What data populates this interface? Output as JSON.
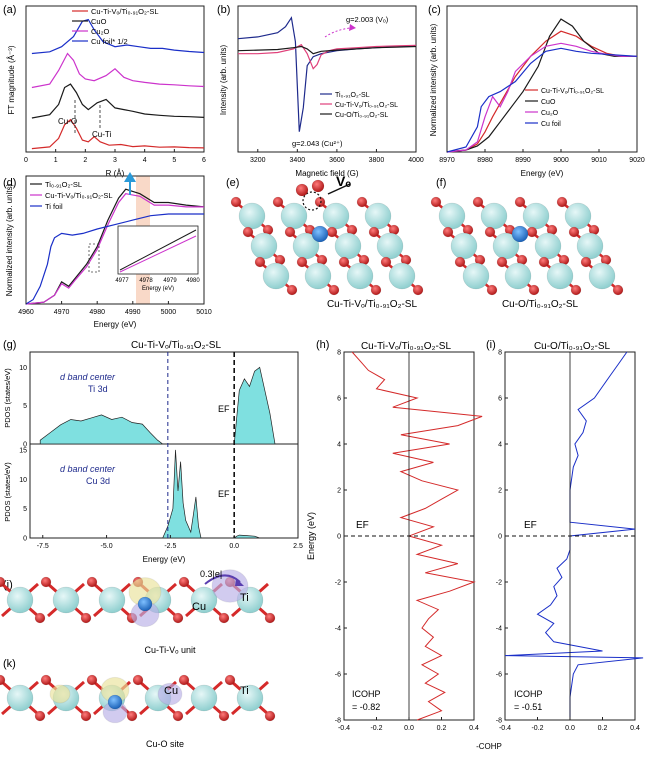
{
  "colors": {
    "red": "#d42a2a",
    "black": "#1a1a1a",
    "pink": "#e0407a",
    "magenta": "#cc33cc",
    "navy": "#1e2a8c",
    "blue": "#1a2fc8",
    "purple": "#7a2fb0",
    "cyan": "#7fe0e0",
    "peach": "#f7c9b0",
    "ti_atom": "#a9dede",
    "o_atom": "#d52a2a",
    "cu_atom": "#3a8fd8",
    "charge_yellow": "#eae29a",
    "charge_purple": "#b9b0e8"
  },
  "panels": {
    "a": {
      "label": "(a)",
      "ylabel": "FT magnitude (Å⁻³)",
      "xlabel": "R (Å)",
      "xticks": [
        "0",
        "1",
        "2",
        "3",
        "4",
        "5",
        "6"
      ],
      "legend": [
        "Cu-Ti-Vₒ/Ti₀.₉₁O₂-SL",
        "CuO",
        "Cu₂O",
        "Cu foil* 1/2"
      ],
      "annotations": [
        "Cu-O",
        "Cu-Ti"
      ]
    },
    "b": {
      "label": "(b)",
      "ylabel": "Intensity (arb. units)",
      "xlabel": "Magnetic field (G)",
      "xticks": [
        "3200",
        "3400",
        "3600",
        "3800",
        "4000"
      ],
      "legend": [
        "Ti₀.₉₁O₂-SL",
        "Cu-Ti-Vₒ/Ti₀.₉₁O₂-SL",
        "Cu-O/Ti₀.₉₁O₂-SL"
      ],
      "annotations": [
        "g=2.003 (Vₒ)",
        "g=2.043 (Cu²⁺)"
      ]
    },
    "c": {
      "label": "(c)",
      "ylabel": "Normalized intensity (arb. units)",
      "xlabel": "Energy (eV)",
      "xticks": [
        "8970",
        "8980",
        "8990",
        "9000",
        "9010",
        "9020"
      ],
      "legend": [
        "Cu-Ti-Vₒ/Ti₀.₉₁O₂-SL",
        "CuO",
        "Cu₂O",
        "Cu foil"
      ]
    },
    "d": {
      "label": "(d)",
      "ylabel": "Normalized intensity (arb. units)",
      "xlabel": "Energy (eV)",
      "xticks": [
        "4960",
        "4970",
        "4980",
        "4990",
        "5000",
        "5010"
      ],
      "inset_xticks": [
        "4977",
        "4978",
        "4979",
        "4980"
      ],
      "inset_xlabel": "Energy (eV)",
      "legend": [
        "Ti₀.₉₁O₂-SL",
        "Cu-Ti-Vₒ/Ti₀.₉₁O₂-SL",
        "Ti foil"
      ]
    },
    "e": {
      "label": "(e)",
      "caption": "Cu-Ti-Vₒ/Ti₀.₉₁O₂-SL",
      "vo_label": "Vₒ"
    },
    "f": {
      "label": "(f)",
      "caption": "Cu-O/Ti₀.₉₁O₂-SL"
    },
    "g": {
      "label": "(g)",
      "title": "Cu-Ti-Vₒ/Ti₀.₉₁O₂-SL",
      "ylabel_top": "PDOS (states/eV)",
      "ylabel_bottom": "PDOS (states/eV)",
      "xlabel": "Energy (eV)",
      "xticks": [
        "-7.5",
        "-5.0",
        "-2.5",
        "0.0",
        "2.5"
      ],
      "yticks_top": [
        "0",
        "5",
        "10"
      ],
      "yticks_bottom": [
        "0",
        "5",
        "10",
        "15"
      ],
      "top_text": [
        "d band center",
        "Ti 3d"
      ],
      "bottom_text": [
        "d band center",
        "Cu 3d"
      ],
      "ef": "EF"
    },
    "h": {
      "label": "(h)",
      "title": "Cu-Ti-Vₒ/Ti₀.₉₁O₂-SL",
      "ylabel": "Energy (eV)",
      "yticks": [
        "8",
        "6",
        "4",
        "2",
        "0",
        "-2",
        "-4",
        "-6",
        "-8"
      ],
      "xticks": [
        "-0.4",
        "-0.2",
        "0.0",
        "0.2",
        "0.4"
      ],
      "icohp": [
        "ICOHP",
        "= -0.82"
      ],
      "ef": "EF"
    },
    "i": {
      "label": "(i)",
      "title": "Cu-O/Ti₀.₉₁O₂-SL",
      "yticks": [
        "8",
        "6",
        "4",
        "2",
        "0",
        "-2",
        "-4",
        "-6",
        "-8"
      ],
      "xticks": [
        "-0.4",
        "-0.2",
        "0.0",
        "0.2",
        "0.4"
      ],
      "icohp": [
        "ICOHP",
        "= -0.51"
      ],
      "ef": "EF"
    },
    "hi_xlabel": "-COHP",
    "j": {
      "label": "(j)",
      "charge": "0.3|e|",
      "cu": "Cu",
      "ti": "Ti",
      "caption": "Cu-Ti-Vₒ unit"
    },
    "k": {
      "label": "(k)",
      "cu": "Cu",
      "ti": "Ti",
      "caption": "Cu-O site"
    }
  },
  "chart_data": [
    {
      "panel": "a",
      "type": "line",
      "xlim": [
        0,
        6
      ],
      "series": [
        {
          "name": "Cu-Ti-Vₒ/Ti₀.₉₁O₂-SL",
          "color": "#d42a2a",
          "x": [
            0.2,
            0.8,
            1.1,
            1.3,
            1.5,
            1.7,
            1.9,
            2.1,
            2.3,
            2.5,
            2.8,
            3.2,
            3.6,
            4.0,
            4.5,
            5.0,
            5.5,
            6.0
          ],
          "y": [
            0.0,
            0.05,
            0.3,
            0.7,
            0.85,
            0.6,
            0.25,
            0.2,
            0.35,
            0.2,
            0.1,
            0.12,
            0.06,
            0.08,
            0.04,
            0.05,
            0.03,
            0.02
          ]
        },
        {
          "name": "CuO",
          "color": "#1a1a1a",
          "x": [
            0.2,
            0.8,
            1.1,
            1.3,
            1.5,
            1.7,
            1.9,
            2.1,
            2.4,
            2.7,
            3.0,
            3.3,
            3.6,
            4.0,
            4.5,
            5.0,
            5.5,
            6.0
          ],
          "y": [
            0.0,
            0.1,
            0.4,
            0.9,
            1.0,
            0.75,
            0.4,
            0.25,
            0.45,
            0.55,
            0.3,
            0.25,
            0.2,
            0.12,
            0.08,
            0.05,
            0.04,
            0.02
          ]
        },
        {
          "name": "Cu₂O",
          "color": "#cc33cc",
          "x": [
            0.2,
            0.8,
            1.1,
            1.4,
            1.6,
            1.8,
            2.0,
            2.3,
            2.7,
            3.0,
            3.3,
            3.6,
            4.0,
            4.5,
            5.0,
            5.5,
            6.0
          ],
          "y": [
            0.0,
            0.1,
            0.5,
            1.0,
            0.8,
            0.4,
            0.25,
            0.2,
            0.35,
            0.55,
            0.3,
            0.2,
            0.15,
            0.1,
            0.08,
            0.05,
            0.03
          ]
        },
        {
          "name": "Cu foil* 1/2",
          "color": "#1a2fc8",
          "x": [
            0.2,
            0.8,
            1.2,
            1.6,
            1.9,
            2.1,
            2.3,
            2.6,
            3.0,
            3.4,
            3.8,
            4.2,
            4.6,
            5.0,
            5.5,
            6.0
          ],
          "y": [
            0.0,
            0.05,
            0.2,
            0.5,
            0.95,
            1.0,
            0.7,
            0.35,
            0.2,
            0.25,
            0.2,
            0.15,
            0.15,
            0.1,
            0.06,
            0.03
          ]
        }
      ]
    },
    {
      "panel": "b",
      "type": "line",
      "xlim": [
        3100,
        4000
      ],
      "series": [
        {
          "name": "Ti₀.₉₁O₂-SL",
          "color": "#1e2a8c",
          "x": [
            3100,
            3200,
            3300,
            3340,
            3370,
            3390,
            3410,
            3430,
            3450,
            3480,
            3520,
            3600,
            3700,
            3800,
            3900,
            4000
          ],
          "y": [
            0.55,
            0.58,
            0.65,
            0.75,
            0.9,
            0.5,
            -1.0,
            -0.6,
            0.1,
            0.25,
            0.3,
            0.35,
            0.38,
            0.4,
            0.42,
            0.43
          ]
        },
        {
          "name": "Cu-Ti-Vₒ/Ti₀.₉₁O₂-SL",
          "color": "#e0407a",
          "x": [
            3100,
            3200,
            3300,
            3380,
            3420,
            3450,
            3480,
            3500,
            3520,
            3560,
            3600,
            3700,
            3800,
            3900,
            4000
          ],
          "y": [
            0.3,
            0.3,
            0.32,
            0.38,
            0.45,
            0.3,
            0.05,
            0.12,
            0.28,
            0.35,
            0.38,
            0.4,
            0.42,
            0.43,
            0.44
          ]
        },
        {
          "name": "Cu-O/Ti₀.₉₁O₂-SL",
          "color": "#1a1a1a",
          "x": [
            3100,
            3200,
            3300,
            3380,
            3420,
            3450,
            3480,
            3520,
            3600,
            3700,
            3800,
            3900,
            4000
          ],
          "y": [
            0.35,
            0.36,
            0.37,
            0.4,
            0.42,
            0.38,
            0.3,
            0.34,
            0.36,
            0.38,
            0.4,
            0.41,
            0.42
          ]
        }
      ]
    },
    {
      "panel": "c",
      "type": "line",
      "xlim": [
        8970,
        9020
      ],
      "series": [
        {
          "name": "Cu-Ti-Vₒ/Ti₀.₉₁O₂-SL",
          "color": "#d42a2a",
          "x": [
            8970,
            8975,
            8978,
            8980,
            8982,
            8985,
            8988,
            8992,
            8996,
            9000,
            9004,
            9008,
            9012,
            9016,
            9020
          ],
          "y": [
            0.0,
            0.02,
            0.08,
            0.2,
            0.35,
            0.55,
            0.75,
            0.95,
            1.1,
            1.2,
            1.15,
            1.05,
            0.98,
            0.95,
            0.95
          ]
        },
        {
          "name": "CuO",
          "color": "#1a1a1a",
          "x": [
            8970,
            8975,
            8978,
            8981,
            8984,
            8987,
            8990,
            8994,
            8997,
            9000,
            9003,
            9006,
            9010,
            9014,
            9020
          ],
          "y": [
            0.0,
            0.02,
            0.06,
            0.15,
            0.3,
            0.45,
            0.6,
            0.85,
            1.15,
            1.32,
            1.25,
            1.1,
            0.98,
            0.95,
            0.95
          ]
        },
        {
          "name": "Cu₂O",
          "color": "#cc33cc",
          "x": [
            8970,
            8975,
            8978,
            8980,
            8982,
            8984,
            8986,
            8988,
            8992,
            8996,
            9000,
            9004,
            9008,
            9012,
            9016,
            9020
          ],
          "y": [
            0.0,
            0.02,
            0.1,
            0.35,
            0.55,
            0.45,
            0.6,
            0.8,
            0.95,
            1.05,
            1.08,
            1.05,
            1.0,
            0.97,
            0.95,
            0.95
          ]
        },
        {
          "name": "Cu foil",
          "color": "#1a2fc8",
          "x": [
            8970,
            8975,
            8978,
            8979,
            8981,
            8984,
            8988,
            8992,
            8996,
            9000,
            9004,
            9008,
            9012,
            9016,
            9020
          ],
          "y": [
            0.0,
            0.05,
            0.25,
            0.45,
            0.55,
            0.6,
            0.7,
            0.88,
            1.0,
            1.03,
            1.0,
            0.98,
            0.97,
            0.96,
            0.95
          ]
        }
      ]
    },
    {
      "panel": "d",
      "type": "line",
      "xlim": [
        4960,
        5010
      ],
      "series": [
        {
          "name": "Ti₀.₉₁O₂-SL",
          "color": "#1a1a1a",
          "x": [
            4960,
            4965,
            4968,
            4970,
            4972,
            4974,
            4977,
            4980,
            4983,
            4986,
            4988,
            4992,
            4996,
            5000,
            5005,
            5010
          ],
          "y": [
            0.0,
            0.02,
            0.1,
            0.25,
            0.2,
            0.3,
            0.45,
            0.65,
            0.95,
            1.2,
            1.3,
            1.25,
            1.15,
            1.15,
            1.12,
            1.1
          ]
        },
        {
          "name": "Cu-Ti-Vₒ/Ti₀.₉₁O₂-SL",
          "color": "#cc33cc",
          "x": [
            4960,
            4965,
            4968,
            4970,
            4972,
            4974,
            4977,
            4980,
            4983,
            4986,
            4988,
            4992,
            4996,
            5000,
            5005,
            5010
          ],
          "y": [
            0.0,
            0.02,
            0.1,
            0.23,
            0.18,
            0.28,
            0.42,
            0.62,
            0.9,
            1.15,
            1.25,
            1.22,
            1.12,
            1.12,
            1.1,
            1.1
          ]
        },
        {
          "name": "Ti foil",
          "color": "#1a2fc8",
          "x": [
            4960,
            4962,
            4964,
            4966,
            4967,
            4968,
            4970,
            4973,
            4976,
            4980,
            4985,
            4990,
            4995,
            5000,
            5005,
            5010
          ],
          "y": [
            0.0,
            0.05,
            0.2,
            0.45,
            0.65,
            0.75,
            0.8,
            0.78,
            0.8,
            0.85,
            0.9,
            0.95,
            1.0,
            1.02,
            1.02,
            1.02
          ]
        }
      ]
    },
    {
      "panel": "g-top",
      "type": "area",
      "xlim": [
        -8,
        2.5
      ],
      "ylim": [
        0,
        12
      ],
      "x": [
        -7.6,
        -7.2,
        -6.8,
        -6.4,
        -6.0,
        -5.6,
        -5.2,
        -4.8,
        -4.4,
        -4.0,
        -3.6,
        -3.3,
        -3.0,
        -2.8,
        0.0,
        0.2,
        0.4,
        0.6,
        0.8,
        1.0,
        1.2,
        1.4,
        1.6
      ],
      "y": [
        0.5,
        1.5,
        2.5,
        3.2,
        3.0,
        3.4,
        3.8,
        3.2,
        3.5,
        2.8,
        2.6,
        1.5,
        0.5,
        0.0,
        0.0,
        7.0,
        8.5,
        7.5,
        9.5,
        10.0,
        7.0,
        4.0,
        0.0
      ]
    },
    {
      "panel": "g-bottom",
      "type": "area",
      "xlim": [
        -8,
        2.5
      ],
      "ylim": [
        0,
        16
      ],
      "x": [
        -2.8,
        -2.6,
        -2.4,
        -2.3,
        -2.2,
        -2.1,
        -2.0,
        -1.9,
        -1.7,
        -1.6,
        -1.5,
        -1.4,
        -1.3,
        0.0,
        0.1,
        0.2,
        0.5,
        0.8,
        1.0
      ],
      "y": [
        0.0,
        2.0,
        5.0,
        15.0,
        8.0,
        13.0,
        6.0,
        3.0,
        1.0,
        4.0,
        7.0,
        2.0,
        0.0,
        0.0,
        0.3,
        0.5,
        0.4,
        0.3,
        0.0
      ]
    },
    {
      "panel": "h",
      "type": "line",
      "xlim": [
        -0.4,
        0.4
      ],
      "ylim": [
        -8,
        8
      ],
      "color": "#d42a2a",
      "energy": [
        -8,
        -7.6,
        -7.2,
        -6.8,
        -6.4,
        -6.0,
        -5.6,
        -5.2,
        -4.8,
        -4.4,
        -4.0,
        -3.6,
        -3.2,
        -2.8,
        -2.4,
        -2.0,
        -1.6,
        -1.2,
        -0.8,
        -0.4,
        0.0,
        0.4,
        0.8,
        1.2,
        1.6,
        2.0,
        2.4,
        2.8,
        3.2,
        3.6,
        4.0,
        4.4,
        4.8,
        5.2,
        5.6,
        6.0,
        6.4,
        6.8,
        7.2,
        7.6,
        8.0
      ],
      "cohp": [
        0.05,
        0.2,
        0.12,
        0.22,
        0.1,
        0.18,
        0.08,
        0.2,
        0.1,
        0.15,
        0.08,
        0.12,
        0.18,
        0.05,
        0.25,
        0.4,
        0.1,
        0.3,
        0.05,
        0.2,
        0.0,
        0.15,
        -0.05,
        0.1,
        0.2,
        0.3,
        0.08,
        -0.05,
        0.15,
        -0.1,
        0.25,
        -0.05,
        0.3,
        0.45,
        -0.1,
        0.05,
        -0.2,
        -0.15,
        -0.25,
        -0.3,
        -0.35
      ]
    },
    {
      "panel": "i",
      "type": "line",
      "xlim": [
        -0.4,
        0.4
      ],
      "ylim": [
        -8,
        8
      ],
      "color": "#1a2fc8",
      "energy": [
        -8,
        -7.0,
        -6.0,
        -5.6,
        -5.3,
        -5.2,
        -5.0,
        -4.6,
        -4.2,
        -3.8,
        -3.4,
        -3.0,
        -2.6,
        -2.2,
        -1.8,
        -1.4,
        -1.0,
        -0.6,
        -0.2,
        0.0,
        0.3,
        0.6,
        1.0,
        2.0,
        3.0,
        3.5,
        4.0,
        4.5,
        5.0,
        5.5,
        6.0,
        6.5,
        7.0,
        7.5,
        8.0
      ],
      "cohp": [
        0.0,
        0.0,
        0.02,
        0.05,
        0.45,
        -0.4,
        0.2,
        -0.1,
        -0.15,
        -0.1,
        -0.2,
        -0.12,
        -0.08,
        -0.1,
        -0.05,
        -0.08,
        -0.02,
        0.0,
        0.0,
        0.0,
        0.4,
        0.0,
        0.0,
        0.0,
        0.02,
        0.05,
        0.03,
        0.08,
        0.1,
        0.05,
        0.15,
        0.2,
        0.25,
        0.3,
        0.35
      ]
    }
  ]
}
